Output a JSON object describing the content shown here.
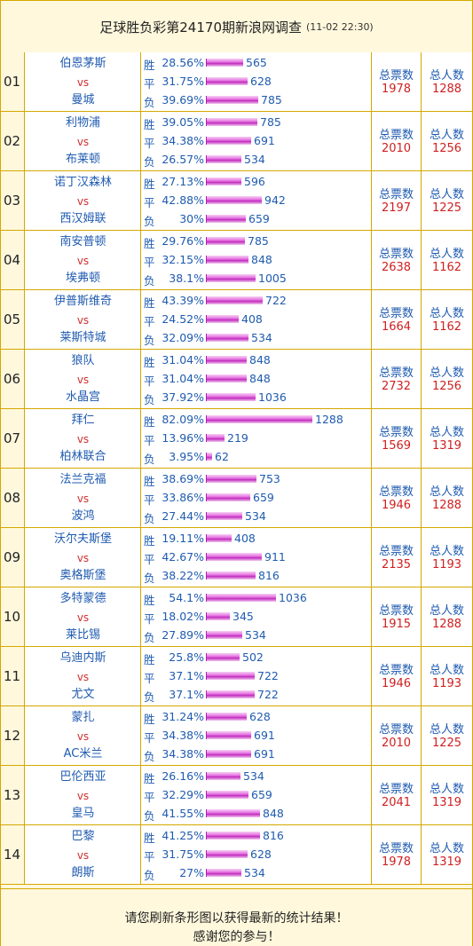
{
  "header": {
    "title": "足球胜负彩第24170期新浪网调查",
    "time": "(11-02 22:30)"
  },
  "labels": {
    "win": "胜",
    "draw": "平",
    "lose": "负",
    "vs": "vs",
    "total_votes": "总票数",
    "total_people": "总人数"
  },
  "colors": {
    "border": "#d4a800",
    "header_bg": "#fff8dc",
    "text_blue": "#1f5bb0",
    "text_red": "#d02020",
    "bar_magenta": "#e46ee0"
  },
  "matches": [
    {
      "num": "01",
      "home": "伯恩茅斯",
      "away": "曼城",
      "vs": "vs",
      "odds": [
        {
          "label": "胜",
          "pct": "28.56%",
          "count": "565",
          "fraction": 0.2856
        },
        {
          "label": "平",
          "pct": "31.75%",
          "count": "628",
          "fraction": 0.3175
        },
        {
          "label": "负",
          "pct": "39.69%",
          "count": "785",
          "fraction": 0.3969
        }
      ],
      "votes": "1978",
      "people": "1288"
    },
    {
      "num": "02",
      "home": "利物浦",
      "away": "布莱顿",
      "vs": "vs",
      "odds": [
        {
          "label": "胜",
          "pct": "39.05%",
          "count": "785",
          "fraction": 0.3905
        },
        {
          "label": "平",
          "pct": "34.38%",
          "count": "691",
          "fraction": 0.3438
        },
        {
          "label": "负",
          "pct": "26.57%",
          "count": "534",
          "fraction": 0.2657
        }
      ],
      "votes": "2010",
      "people": "1256"
    },
    {
      "num": "03",
      "home": "诺丁汉森林",
      "away": "西汉姆联",
      "vs": "vs",
      "odds": [
        {
          "label": "胜",
          "pct": "27.13%",
          "count": "596",
          "fraction": 0.2713
        },
        {
          "label": "平",
          "pct": "42.88%",
          "count": "942",
          "fraction": 0.4288
        },
        {
          "label": "负",
          "pct": "30%",
          "count": "659",
          "fraction": 0.3
        }
      ],
      "votes": "2197",
      "people": "1225"
    },
    {
      "num": "04",
      "home": "南安普顿",
      "away": "埃弗顿",
      "vs": "vs",
      "odds": [
        {
          "label": "胜",
          "pct": "29.76%",
          "count": "785",
          "fraction": 0.2976
        },
        {
          "label": "平",
          "pct": "32.15%",
          "count": "848",
          "fraction": 0.3215
        },
        {
          "label": "负",
          "pct": "38.1%",
          "count": "1005",
          "fraction": 0.381
        }
      ],
      "votes": "2638",
      "people": "1162"
    },
    {
      "num": "05",
      "home": "伊普斯维奇",
      "away": "莱斯特城",
      "vs": "vs",
      "odds": [
        {
          "label": "胜",
          "pct": "43.39%",
          "count": "722",
          "fraction": 0.4339
        },
        {
          "label": "平",
          "pct": "24.52%",
          "count": "408",
          "fraction": 0.2452
        },
        {
          "label": "负",
          "pct": "32.09%",
          "count": "534",
          "fraction": 0.3209
        }
      ],
      "votes": "1664",
      "people": "1162"
    },
    {
      "num": "06",
      "home": "狼队",
      "away": "水晶宫",
      "vs": "vs",
      "odds": [
        {
          "label": "胜",
          "pct": "31.04%",
          "count": "848",
          "fraction": 0.3104
        },
        {
          "label": "平",
          "pct": "31.04%",
          "count": "848",
          "fraction": 0.3104
        },
        {
          "label": "负",
          "pct": "37.92%",
          "count": "1036",
          "fraction": 0.3792
        }
      ],
      "votes": "2732",
      "people": "1256"
    },
    {
      "num": "07",
      "home": "拜仁",
      "away": "柏林联合",
      "vs": "vs",
      "odds": [
        {
          "label": "胜",
          "pct": "82.09%",
          "count": "1288",
          "fraction": 0.8209
        },
        {
          "label": "平",
          "pct": "13.96%",
          "count": "219",
          "fraction": 0.1396
        },
        {
          "label": "负",
          "pct": "3.95%",
          "count": "62",
          "fraction": 0.0395
        }
      ],
      "votes": "1569",
      "people": "1319"
    },
    {
      "num": "08",
      "home": "法兰克福",
      "away": "波鸿",
      "vs": "vs",
      "odds": [
        {
          "label": "胜",
          "pct": "38.69%",
          "count": "753",
          "fraction": 0.3869
        },
        {
          "label": "平",
          "pct": "33.86%",
          "count": "659",
          "fraction": 0.3386
        },
        {
          "label": "负",
          "pct": "27.44%",
          "count": "534",
          "fraction": 0.2744
        }
      ],
      "votes": "1946",
      "people": "1288"
    },
    {
      "num": "09",
      "home": "沃尔夫斯堡",
      "away": "奥格斯堡",
      "vs": "vs",
      "odds": [
        {
          "label": "胜",
          "pct": "19.11%",
          "count": "408",
          "fraction": 0.1911
        },
        {
          "label": "平",
          "pct": "42.67%",
          "count": "911",
          "fraction": 0.4267
        },
        {
          "label": "负",
          "pct": "38.22%",
          "count": "816",
          "fraction": 0.3822
        }
      ],
      "votes": "2135",
      "people": "1193"
    },
    {
      "num": "10",
      "home": "多特蒙德",
      "away": "莱比锡",
      "vs": "vs",
      "odds": [
        {
          "label": "胜",
          "pct": "54.1%",
          "count": "1036",
          "fraction": 0.541
        },
        {
          "label": "平",
          "pct": "18.02%",
          "count": "345",
          "fraction": 0.1802
        },
        {
          "label": "负",
          "pct": "27.89%",
          "count": "534",
          "fraction": 0.2789
        }
      ],
      "votes": "1915",
      "people": "1288"
    },
    {
      "num": "11",
      "home": "乌迪内斯",
      "away": "尤文",
      "vs": "vs",
      "odds": [
        {
          "label": "胜",
          "pct": "25.8%",
          "count": "502",
          "fraction": 0.258
        },
        {
          "label": "平",
          "pct": "37.1%",
          "count": "722",
          "fraction": 0.371
        },
        {
          "label": "负",
          "pct": "37.1%",
          "count": "722",
          "fraction": 0.371
        }
      ],
      "votes": "1946",
      "people": "1193"
    },
    {
      "num": "12",
      "home": "蒙扎",
      "away": "AC米兰",
      "vs": "vs",
      "odds": [
        {
          "label": "胜",
          "pct": "31.24%",
          "count": "628",
          "fraction": 0.3124
        },
        {
          "label": "平",
          "pct": "34.38%",
          "count": "691",
          "fraction": 0.3438
        },
        {
          "label": "负",
          "pct": "34.38%",
          "count": "691",
          "fraction": 0.3438
        }
      ],
      "votes": "2010",
      "people": "1225"
    },
    {
      "num": "13",
      "home": "巴伦西亚",
      "away": "皇马",
      "vs": "vs",
      "odds": [
        {
          "label": "胜",
          "pct": "26.16%",
          "count": "534",
          "fraction": 0.2616
        },
        {
          "label": "平",
          "pct": "32.29%",
          "count": "659",
          "fraction": 0.3229
        },
        {
          "label": "负",
          "pct": "41.55%",
          "count": "848",
          "fraction": 0.4155
        }
      ],
      "votes": "2041",
      "people": "1319"
    },
    {
      "num": "14",
      "home": "巴黎",
      "away": "朗斯",
      "vs": "vs",
      "odds": [
        {
          "label": "胜",
          "pct": "41.25%",
          "count": "816",
          "fraction": 0.4125
        },
        {
          "label": "平",
          "pct": "31.75%",
          "count": "628",
          "fraction": 0.3175
        },
        {
          "label": "负",
          "pct": "27%",
          "count": "534",
          "fraction": 0.27
        }
      ],
      "votes": "1978",
      "people": "1319"
    }
  ],
  "footer": {
    "line1": "请您刷新条形图以获得最新的统计结果！",
    "line2": "感谢您的参与！"
  }
}
